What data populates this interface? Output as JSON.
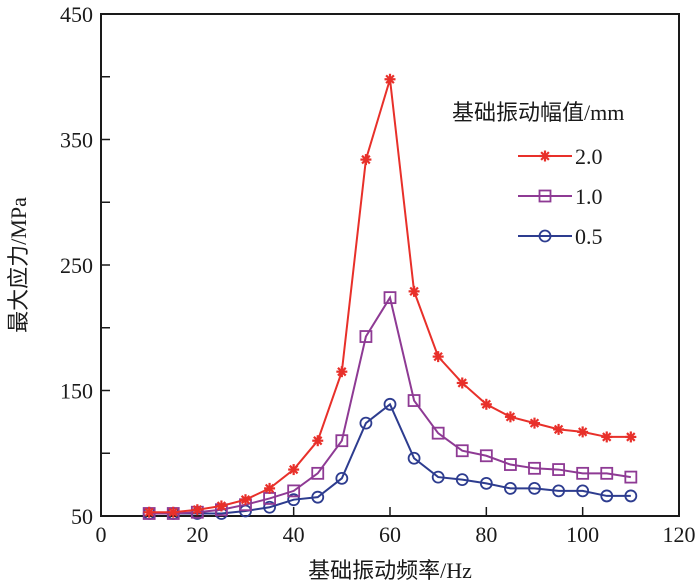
{
  "chart_data": {
    "type": "line",
    "title": "",
    "xlabel": "基础振动频率/Hz",
    "ylabel": "最大应力/MPa",
    "xlim": [
      0,
      120
    ],
    "ylim": [
      50,
      450
    ],
    "xticks": [
      0,
      20,
      40,
      60,
      80,
      100,
      120
    ],
    "xtick_labels": [
      "0",
      "20",
      "40",
      "60",
      "80",
      "100",
      "120"
    ],
    "yticks": [
      50,
      150,
      250,
      350,
      450
    ],
    "ytick_labels": [
      "50",
      "150",
      "250",
      "350",
      "450"
    ],
    "yminor_ticks": [
      100,
      200,
      300,
      400
    ],
    "grid": false,
    "legend_title": "基础振动幅值/mm",
    "legend_position": "top-right",
    "x": [
      10,
      15,
      20,
      25,
      30,
      35,
      40,
      45,
      50,
      55,
      60,
      65,
      70,
      75,
      80,
      85,
      90,
      95,
      100,
      105,
      110
    ],
    "series": [
      {
        "name": "2.0",
        "color": "#e8302a",
        "marker": "asterisk",
        "values": [
          53,
          53,
          55,
          58,
          63,
          72,
          87,
          110,
          165,
          334,
          398,
          229,
          177,
          156,
          139,
          129,
          124,
          119,
          117,
          113,
          113
        ]
      },
      {
        "name": "1.0",
        "color": "#8e3a94",
        "marker": "square",
        "values": [
          52,
          52,
          53,
          55,
          59,
          64,
          70,
          84,
          110,
          193,
          224,
          142,
          116,
          102,
          98,
          91,
          88,
          87,
          84,
          84,
          81
        ]
      },
      {
        "name": "0.5",
        "color": "#2d3c8f",
        "marker": "circle",
        "values": [
          52,
          52,
          52,
          52,
          54,
          57,
          63,
          65,
          80,
          124,
          139,
          96,
          81,
          79,
          76,
          72,
          72,
          70,
          70,
          66,
          66
        ]
      }
    ]
  }
}
